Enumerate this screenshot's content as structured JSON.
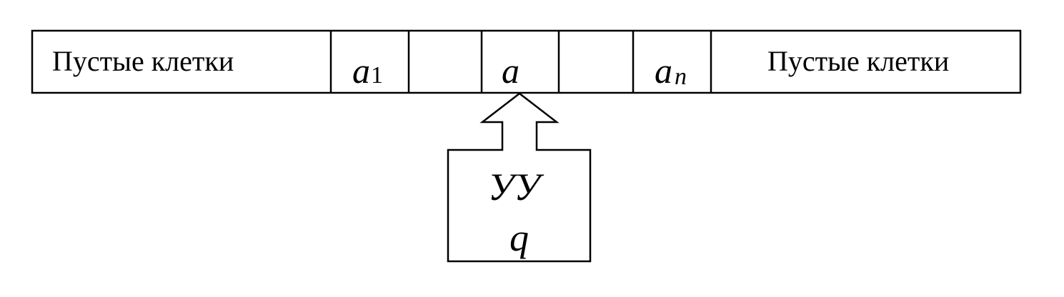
{
  "tape": {
    "left_label": "Пустые клетки",
    "cell_a1": {
      "symbol": "a",
      "index": "1"
    },
    "cell_empty_1": "",
    "cell_head": {
      "symbol": "a"
    },
    "cell_empty_2": "",
    "cell_an": {
      "symbol": "a",
      "index": "n"
    },
    "right_label": "Пустые клетки"
  },
  "control_unit": {
    "label": "УУ",
    "state": "q"
  }
}
